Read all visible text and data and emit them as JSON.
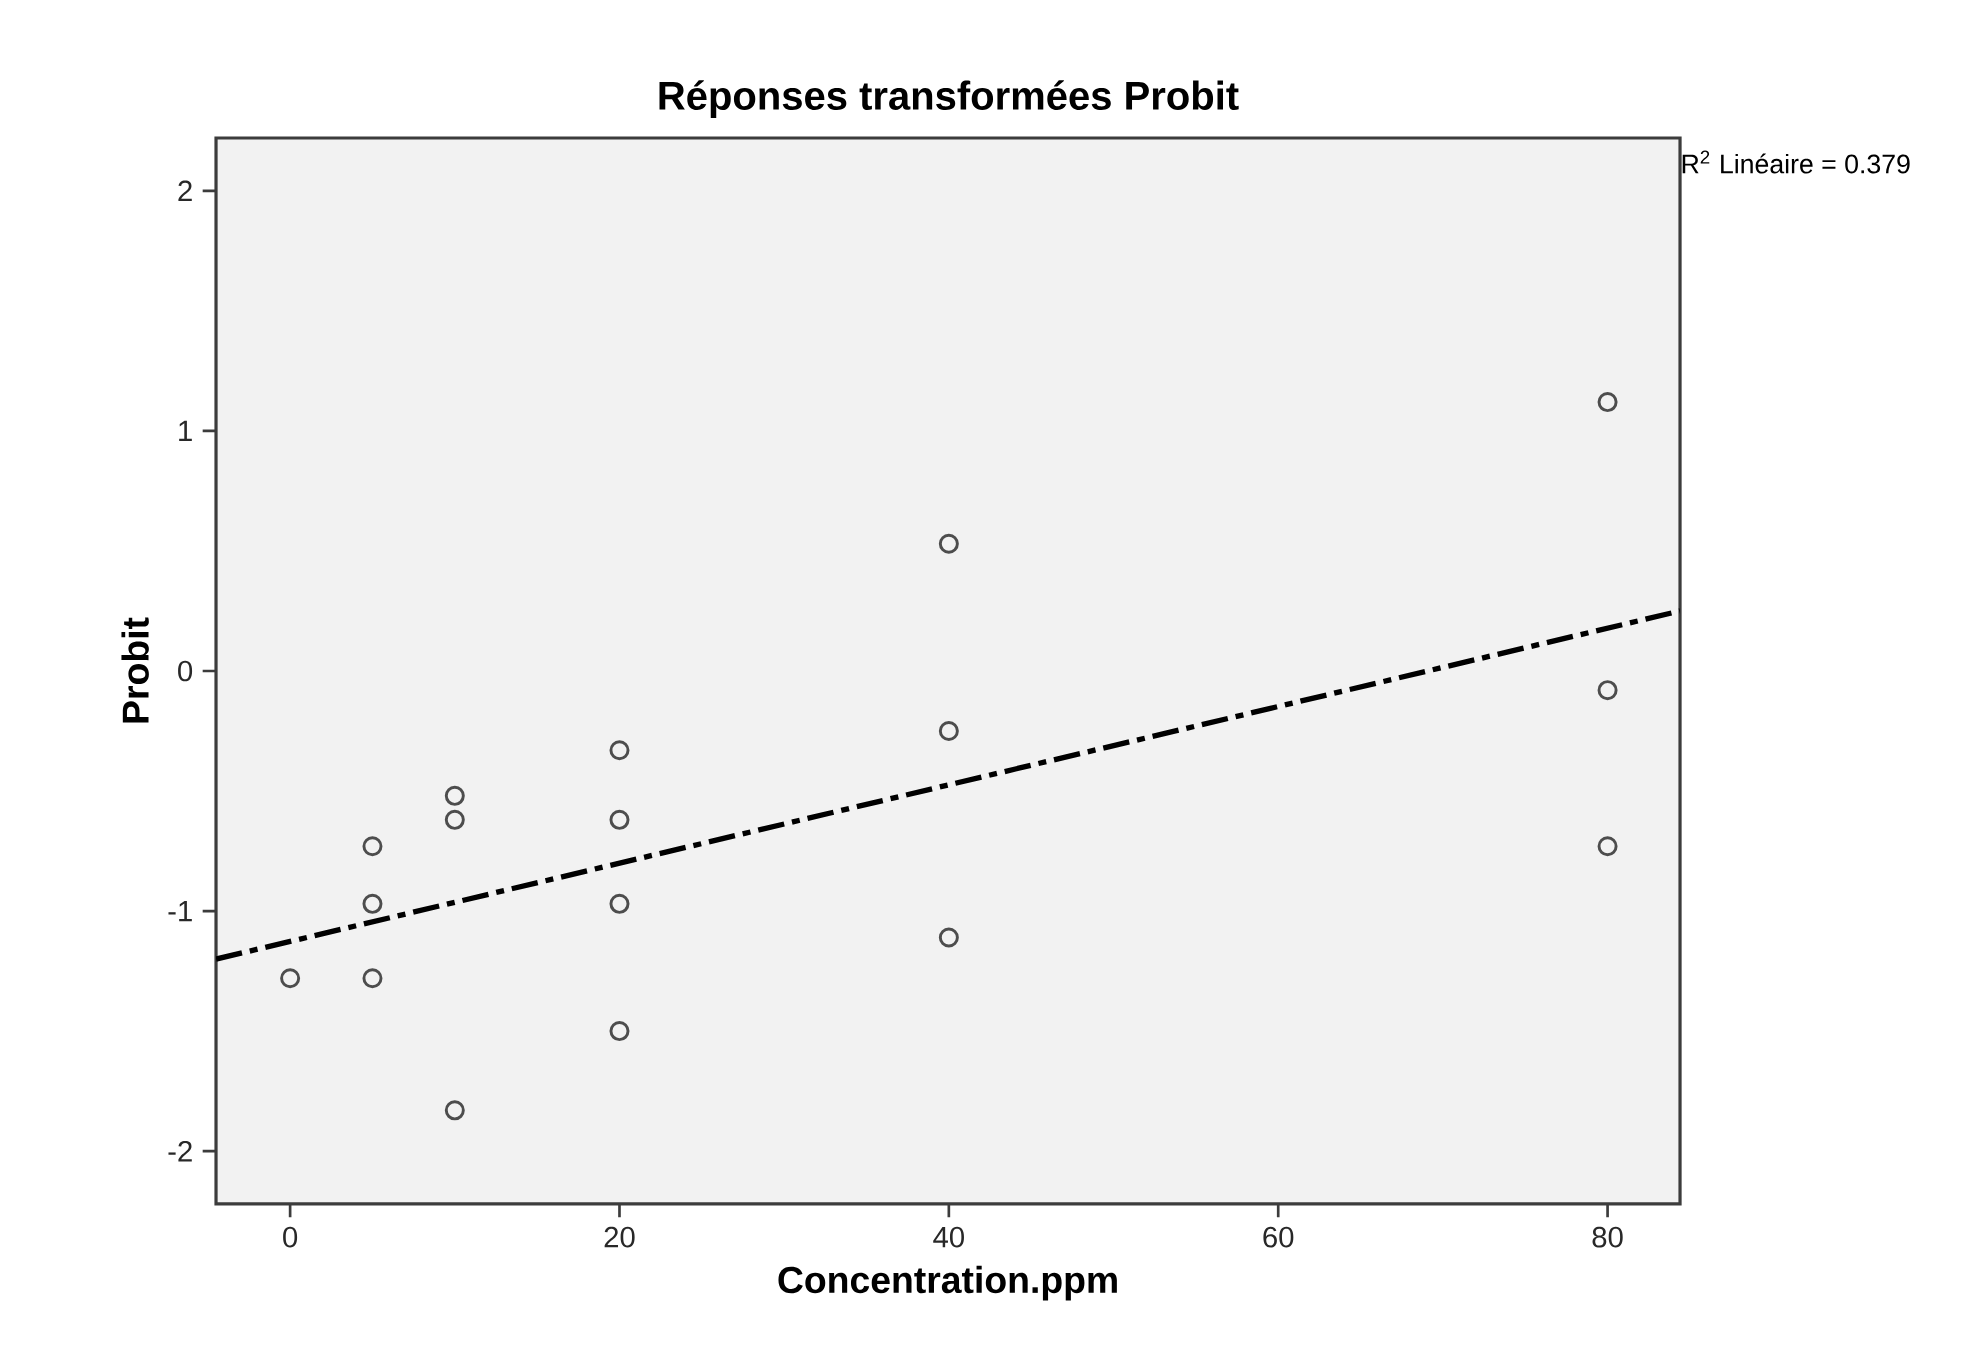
{
  "chart_data": {
    "type": "scatter",
    "title": "Réponses transformées Probit",
    "xlabel": "Concentration.ppm",
    "ylabel": "Probit",
    "series": [
      {
        "color": "#4d4d4d",
        "marker": "circle",
        "x": [
          0,
          5,
          5,
          5,
          10,
          10,
          10,
          20,
          20,
          20,
          20,
          40,
          40,
          40,
          80,
          80,
          80
        ],
        "values": [
          -1.28,
          -0.73,
          -0.97,
          -1.28,
          -0.52,
          -0.62,
          -1.83,
          -0.33,
          -0.62,
          -0.97,
          -1.5,
          0.53,
          -0.25,
          -1.11,
          1.12,
          -0.08,
          -0.73
        ]
      },
      {
        "type": "line",
        "color": "#000000",
        "marker": "none",
        "line_style": "dashdot",
        "x": [
          -4.5,
          84.4
        ],
        "values": [
          -1.2,
          0.25
        ]
      }
    ],
    "xlim": [
      -4.5,
      84.4
    ],
    "ylim": [
      -2.22,
      2.22
    ],
    "xticks": [
      0,
      20,
      40,
      60,
      80
    ],
    "yticks": [
      -2,
      -1,
      0,
      1,
      2
    ],
    "grid": false,
    "annotations": [
      "R$^{2}$ Linéaire = 0.379"
    ]
  }
}
